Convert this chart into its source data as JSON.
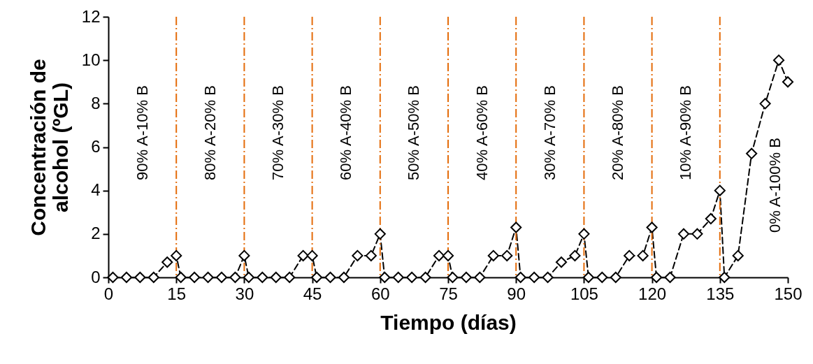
{
  "chart_data": {
    "type": "line",
    "xlabel": "Tiempo (días)",
    "ylabel": "Concentración de alcohol (ºGL)",
    "x": [
      1,
      4,
      7,
      10,
      13,
      15,
      16,
      19,
      22,
      25,
      28,
      30,
      31,
      34,
      37,
      40,
      43,
      45,
      46,
      49,
      52,
      55,
      58,
      60,
      61,
      64,
      67,
      70,
      73,
      75,
      76,
      79,
      82,
      85,
      88,
      90,
      91,
      94,
      97,
      100,
      103,
      105,
      106,
      109,
      112,
      115,
      118,
      120,
      121,
      124,
      127,
      130,
      133,
      135,
      136,
      139,
      142,
      145,
      148,
      150
    ],
    "series": [
      {
        "color": "#000000",
        "values": [
          0,
          0,
          0,
          0,
          0.7,
          1,
          0,
          0,
          0,
          0,
          0,
          1,
          0,
          0,
          0,
          0,
          1,
          1,
          0,
          0,
          0,
          1,
          1,
          2,
          0,
          0,
          0,
          0,
          1,
          1,
          0,
          0,
          0,
          1,
          1,
          2.3,
          0,
          0,
          0,
          0.7,
          1,
          2,
          0,
          0,
          0,
          1,
          1,
          2.3,
          0,
          0,
          2,
          2,
          2.7,
          4,
          0,
          1,
          5.7,
          8,
          10,
          9
        ]
      }
    ],
    "xlim": [
      0,
      150
    ],
    "xticks": [
      0,
      15,
      30,
      45,
      60,
      75,
      90,
      105,
      120,
      135,
      150
    ],
    "ylim": [
      0,
      12
    ],
    "yticks": [
      0,
      2,
      4,
      6,
      8,
      10,
      12
    ],
    "marker": "diamond",
    "line_style": "dashed",
    "ref_lines": [
      {
        "axis": "x",
        "value": 15,
        "color": "#e46c0a",
        "line_style": "dashdot"
      },
      {
        "axis": "x",
        "value": 30,
        "color": "#e46c0a",
        "line_style": "dashdot"
      },
      {
        "axis": "x",
        "value": 45,
        "color": "#e46c0a",
        "line_style": "dashdot"
      },
      {
        "axis": "x",
        "value": 60,
        "color": "#e46c0a",
        "line_style": "dashdot"
      },
      {
        "axis": "x",
        "value": 75,
        "color": "#e46c0a",
        "line_style": "dashdot"
      },
      {
        "axis": "x",
        "value": 90,
        "color": "#e46c0a",
        "line_style": "dashdot"
      },
      {
        "axis": "x",
        "value": 105,
        "color": "#e46c0a",
        "line_style": "dashdot"
      },
      {
        "axis": "x",
        "value": 120,
        "color": "#e46c0a",
        "line_style": "dashdot"
      },
      {
        "axis": "x",
        "value": 135,
        "color": "#e46c0a",
        "line_style": "dashdot"
      }
    ],
    "annotations": [
      "90% A-10% B",
      "80% A-20% B",
      "70% A-30% B",
      "60% A-40% B",
      "50% A-50% B",
      "40% A-60% B",
      "30% A-70% B",
      "20% A-80% B",
      "10% A-90% B",
      "0% A-100% B"
    ]
  }
}
